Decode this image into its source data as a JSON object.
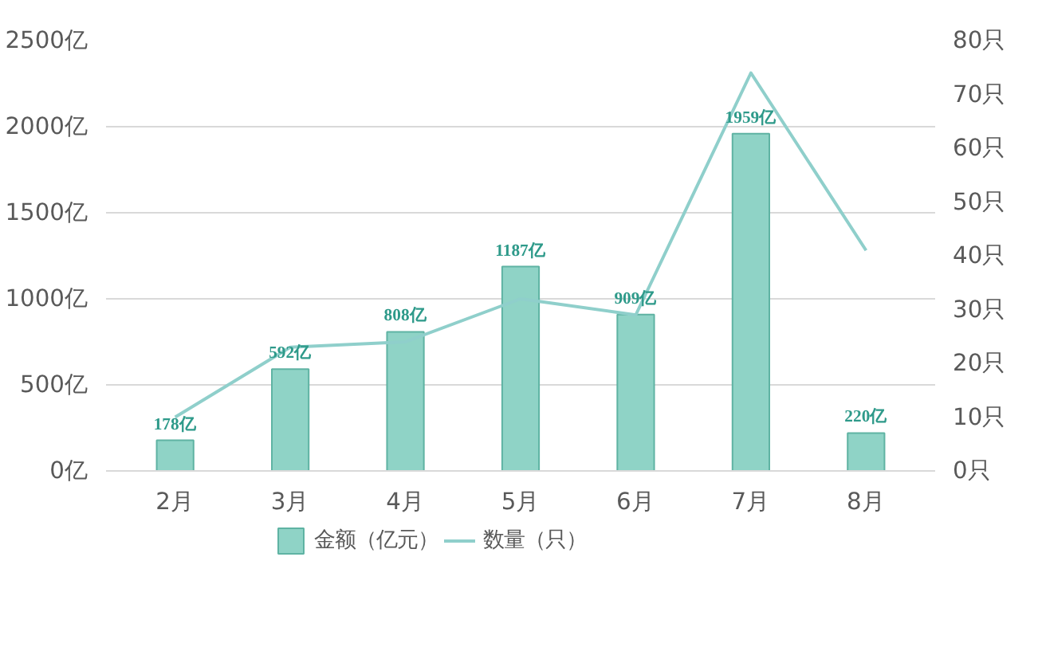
{
  "chart_data": {
    "type": "bar",
    "categories": [
      "2月",
      "3月",
      "4月",
      "5月",
      "6月",
      "7月",
      "8月"
    ],
    "series": [
      {
        "name": "金额（亿元）",
        "color": "#8fd3c6",
        "values": [
          178,
          592,
          808,
          1187,
          909,
          1959,
          220
        ],
        "value_labels": [
          "178亿",
          "592亿",
          "808亿",
          "1187亿",
          "909亿",
          "1959亿",
          "220亿"
        ]
      },
      {
        "name": "数量（只）",
        "type": "line",
        "axis": "y2",
        "color": "#8fcfcb",
        "values": [
          10,
          23,
          24,
          32,
          29,
          74,
          41
        ]
      }
    ],
    "ylim": [
      0,
      2500
    ],
    "yticks": [
      {
        "value": 0,
        "label": "0亿"
      },
      {
        "value": 500,
        "label": "500亿"
      },
      {
        "value": 1000,
        "label": "1000亿"
      },
      {
        "value": 1500,
        "label": "1500亿"
      },
      {
        "value": 2000,
        "label": "2000亿"
      },
      {
        "value": 2500,
        "label": "2500亿"
      }
    ],
    "y2lim": [
      0,
      80
    ],
    "y2ticks": [
      {
        "value": 0,
        "label": "0只"
      },
      {
        "value": 10,
        "label": "10只"
      },
      {
        "value": 20,
        "label": "20只"
      },
      {
        "value": 30,
        "label": "30只"
      },
      {
        "value": 40,
        "label": "40只"
      },
      {
        "value": 50,
        "label": "50只"
      },
      {
        "value": 60,
        "label": "60只"
      },
      {
        "value": 70,
        "label": "70只"
      },
      {
        "value": 80,
        "label": "80只"
      }
    ],
    "grid": "y",
    "legend": "bottom",
    "line_style": "solid"
  }
}
